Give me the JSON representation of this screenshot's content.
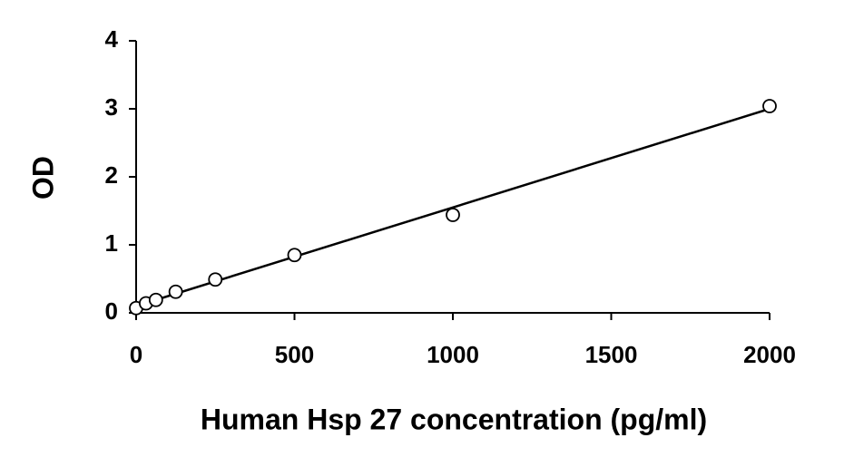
{
  "chart_data": {
    "type": "scatter",
    "x_label": "Human Hsp 27 concentration (pg/ml)",
    "y_label": "OD",
    "series": [
      {
        "name": "OD",
        "color": "#000000",
        "x": [
          0,
          31.25,
          62.5,
          125,
          250,
          500,
          1000,
          2000
        ],
        "values": [
          0.07,
          0.14,
          0.19,
          0.31,
          0.49,
          0.85,
          1.44,
          3.04
        ]
      }
    ],
    "trendline": {
      "x": [
        0,
        2000
      ],
      "values": [
        0.1,
        3.0
      ],
      "color": "#000000"
    },
    "xlim": [
      0,
      2000
    ],
    "xticks": [
      0,
      500,
      1000,
      1500,
      2000
    ],
    "ylim": [
      0,
      4
    ],
    "yticks": [
      0,
      1,
      2,
      3,
      4
    ],
    "grid": false
  }
}
